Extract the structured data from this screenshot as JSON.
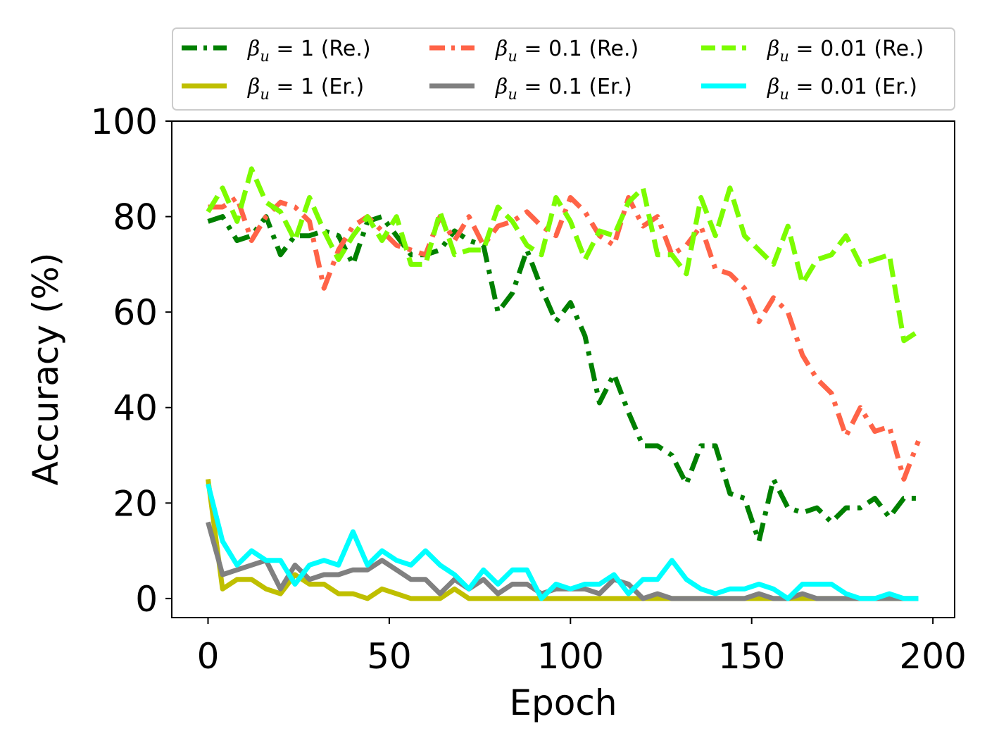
{
  "chart_data": {
    "type": "line",
    "xlabel": "Epoch",
    "ylabel": "Accuracy (%)",
    "xlim": [
      -10,
      206
    ],
    "ylim": [
      -4,
      100
    ],
    "xticks": [
      0,
      50,
      100,
      150,
      200
    ],
    "yticks": [
      0,
      20,
      40,
      60,
      80,
      100
    ],
    "xtick_labels": [
      "0",
      "50",
      "100",
      "150",
      "200"
    ],
    "ytick_labels": [
      "0",
      "20",
      "40",
      "60",
      "80",
      "100"
    ],
    "grid": false,
    "legend_position": "top, above plot, 3 columns",
    "x": [
      0,
      4,
      8,
      12,
      16,
      20,
      24,
      28,
      32,
      36,
      40,
      44,
      48,
      52,
      56,
      60,
      64,
      68,
      72,
      76,
      80,
      84,
      88,
      92,
      96,
      100,
      104,
      108,
      112,
      116,
      120,
      124,
      128,
      132,
      136,
      140,
      144,
      148,
      152,
      156,
      160,
      164,
      168,
      172,
      176,
      180,
      184,
      188,
      192,
      196
    ],
    "series": [
      {
        "name": "β_u = 1 (Re.)",
        "greek": "β",
        "sub": "u",
        "eq": " = 1 (Re.)",
        "color": "#008000",
        "dash": "dashdot",
        "values": [
          79,
          80,
          75,
          76,
          80,
          72,
          76,
          76,
          77,
          76,
          70,
          79,
          80,
          76,
          72,
          72,
          73,
          77,
          75,
          74,
          60,
          64,
          73,
          65,
          58,
          62,
          55,
          41,
          47,
          39,
          32,
          32,
          30,
          24,
          32,
          32,
          22,
          21,
          12,
          25,
          19,
          18,
          19,
          16,
          19,
          19,
          21,
          17,
          21,
          21
        ]
      },
      {
        "name": "β_u = 1 (Er.)",
        "greek": "β",
        "sub": "u",
        "eq": " = 1 (Er.)",
        "color": "#bfbf00",
        "dash": "solid",
        "values": [
          25,
          2,
          4,
          4,
          2,
          1,
          5,
          3,
          3,
          1,
          1,
          0,
          2,
          1,
          0,
          0,
          0,
          2,
          0,
          0,
          0,
          0,
          0,
          0,
          0,
          0,
          0,
          0,
          0,
          0,
          0,
          0,
          0,
          0,
          0,
          0,
          0,
          0,
          0,
          0,
          0,
          0,
          0,
          0,
          0,
          0,
          0,
          0,
          0,
          0
        ]
      },
      {
        "name": "β_u = 0.1 (Re.)",
        "greek": "β",
        "sub": "u",
        "eq": " = 0.1 (Re.)",
        "color": "#ff6347",
        "dash": "dashdot",
        "values": [
          82,
          82,
          84,
          75,
          80,
          83,
          82,
          79,
          65,
          73,
          78,
          80,
          77,
          74,
          73,
          72,
          80,
          75,
          80,
          74,
          78,
          79,
          81,
          78,
          76,
          84,
          81,
          76,
          74,
          84,
          78,
          80,
          72,
          74,
          78,
          69,
          68,
          65,
          58,
          63,
          60,
          51,
          46,
          43,
          34,
          40,
          35,
          36,
          25,
          33
        ]
      },
      {
        "name": "β_u = 0.1 (Er.)",
        "greek": "β",
        "sub": "u",
        "eq": " = 0.1 (Er.)",
        "color": "#808080",
        "dash": "solid",
        "values": [
          16,
          5,
          6,
          7,
          8,
          2,
          7,
          4,
          5,
          5,
          6,
          6,
          8,
          6,
          4,
          4,
          1,
          4,
          2,
          4,
          1,
          3,
          3,
          1,
          2,
          2,
          2,
          1,
          4,
          3,
          0,
          1,
          0,
          0,
          0,
          0,
          0,
          0,
          1,
          0,
          0,
          1,
          0,
          0,
          0,
          0,
          0,
          0,
          0,
          0
        ]
      },
      {
        "name": "β_u = 0.01 (Re.)",
        "greek": "β",
        "sub": "u",
        "eq": " = 0.01 (Re.)",
        "color": "#7cfc00",
        "dash": "dashed",
        "values": [
          81,
          86,
          79,
          90,
          83,
          81,
          75,
          84,
          77,
          71,
          76,
          80,
          75,
          80,
          70,
          70,
          81,
          72,
          73,
          73,
          82,
          79,
          74,
          72,
          84,
          79,
          71,
          77,
          76,
          83,
          86,
          72,
          72,
          68,
          84,
          76,
          86,
          76,
          73,
          70,
          78,
          66,
          71,
          72,
          76,
          70,
          71,
          72,
          54,
          56
        ]
      },
      {
        "name": "β_u = 0.01 (Er.)",
        "greek": "β",
        "sub": "u",
        "eq": " = 0.01 (Er.)",
        "color": "#00ffff",
        "dash": "solid",
        "values": [
          24,
          12,
          7,
          10,
          8,
          8,
          3,
          7,
          8,
          7,
          14,
          7,
          10,
          8,
          7,
          10,
          7,
          5,
          2,
          6,
          3,
          6,
          6,
          0,
          3,
          2,
          3,
          3,
          5,
          1,
          4,
          4,
          8,
          4,
          2,
          1,
          2,
          2,
          3,
          2,
          0,
          3,
          3,
          3,
          1,
          0,
          0,
          1,
          0,
          0
        ]
      }
    ]
  }
}
